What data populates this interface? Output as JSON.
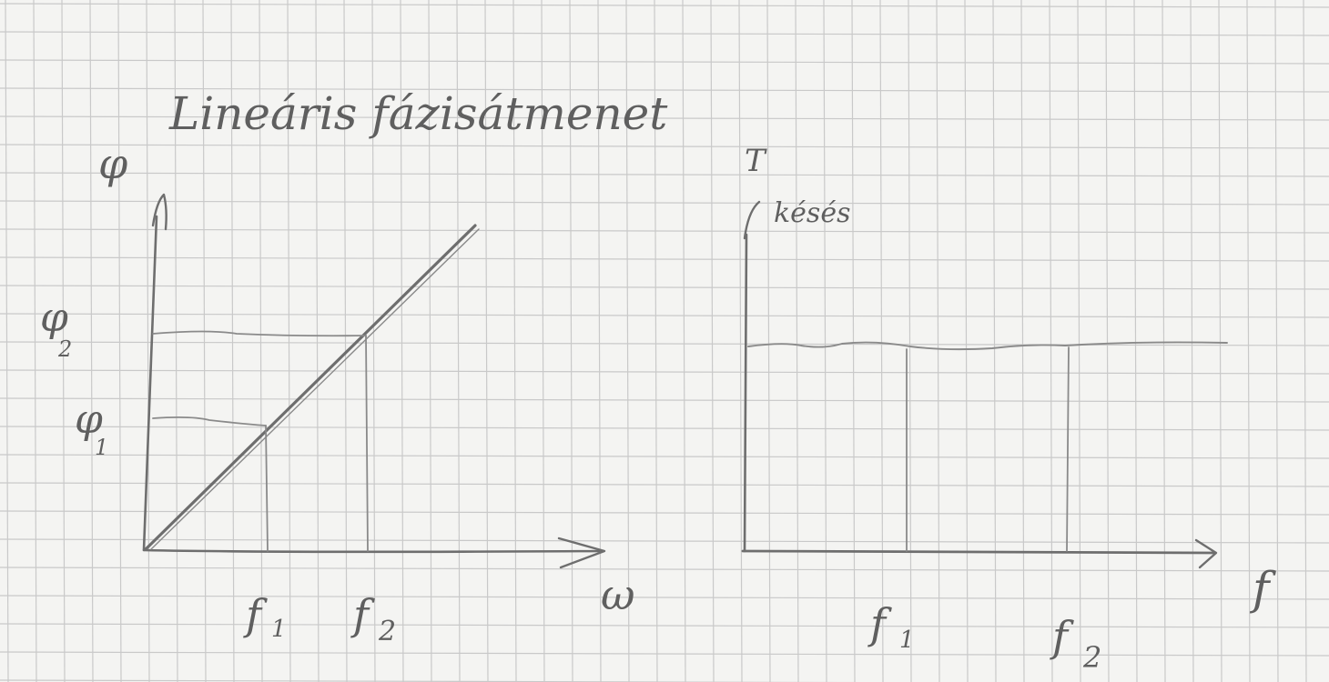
{
  "title": "Lineáris fázisátmenet",
  "left_plot": {
    "y_label": "φ",
    "x_label": "ω",
    "y_ticks": [
      {
        "main": "φ",
        "sub": "2"
      },
      {
        "main": "φ",
        "sub": "1"
      }
    ],
    "x_ticks": [
      {
        "main": "f",
        "sub": "1"
      },
      {
        "main": "f",
        "sub": "2"
      }
    ]
  },
  "right_plot": {
    "y_label_main": "T",
    "y_label_sub": "késés",
    "x_label": "f",
    "x_ticks": [
      {
        "main": "f",
        "sub": "1"
      },
      {
        "main": "f",
        "sub": "2"
      }
    ]
  },
  "colors": {
    "paper": "#f4f4f2",
    "grid": "#c9c9c9",
    "pencil": "#6e6e6e"
  }
}
